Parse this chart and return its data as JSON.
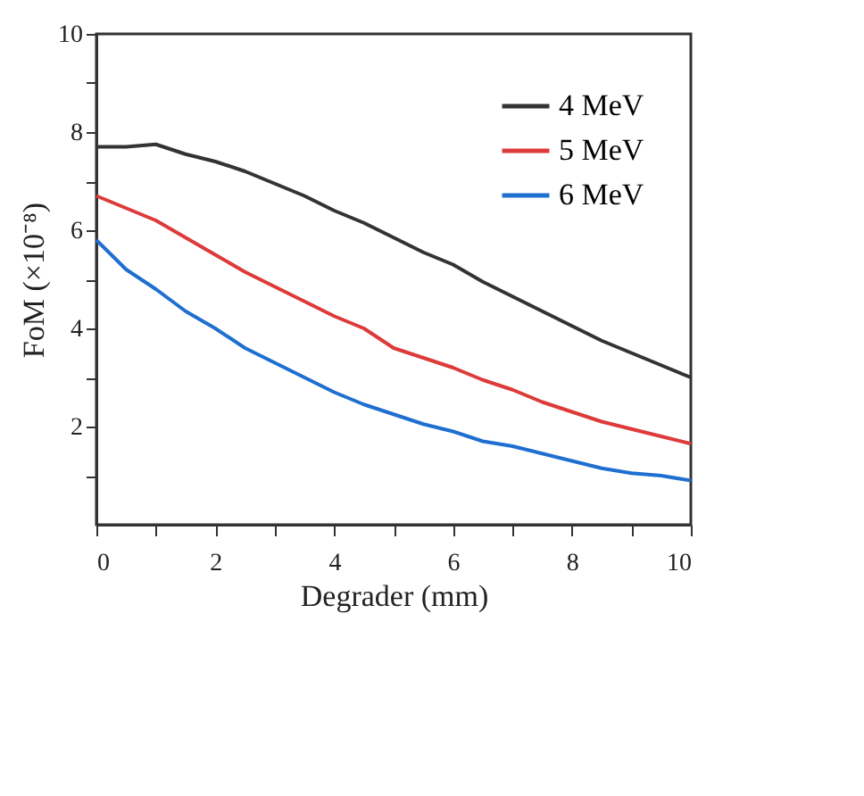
{
  "chart_data": {
    "type": "line",
    "xlabel": "Degrader (mm)",
    "ylabel": "FoM (×10⁻⁸)",
    "x": [
      0,
      0.5,
      1,
      1.5,
      2,
      2.5,
      3,
      3.5,
      4,
      4.5,
      5,
      5.5,
      6,
      6.5,
      7,
      7.5,
      8,
      8.5,
      9,
      9.5,
      10
    ],
    "series": [
      {
        "name": "4 MeV",
        "color": "#333333",
        "values": [
          7.7,
          7.7,
          7.75,
          7.55,
          7.4,
          7.2,
          6.95,
          6.7,
          6.4,
          6.15,
          5.85,
          5.55,
          5.3,
          4.95,
          4.65,
          4.35,
          4.05,
          3.75,
          3.5,
          3.25,
          3.0
        ]
      },
      {
        "name": "5 MeV",
        "color": "#dd3a3a",
        "values": [
          6.7,
          6.45,
          6.2,
          5.85,
          5.5,
          5.15,
          4.85,
          4.55,
          4.25,
          4.0,
          3.6,
          3.4,
          3.2,
          2.95,
          2.75,
          2.5,
          2.3,
          2.1,
          1.95,
          1.8,
          1.65
        ]
      },
      {
        "name": "6 MeV",
        "color": "#1f6fd0",
        "values": [
          5.8,
          5.2,
          4.8,
          4.35,
          4.0,
          3.6,
          3.3,
          3.0,
          2.7,
          2.45,
          2.25,
          2.05,
          1.9,
          1.7,
          1.6,
          1.45,
          1.3,
          1.15,
          1.05,
          1.0,
          0.9
        ]
      }
    ],
    "xlim": [
      0,
      10
    ],
    "xticks": [
      0,
      {
        "value": 1,
        "label": null
      },
      2,
      {
        "value": 3,
        "label": null
      },
      4,
      {
        "value": 5,
        "label": null
      },
      6,
      {
        "value": 7,
        "label": null
      },
      8,
      {
        "value": 9,
        "label": null
      },
      10
    ],
    "ylim": [
      0,
      10
    ],
    "yticks": [
      {
        "value": 1,
        "label": null
      },
      2,
      {
        "value": 3,
        "label": null
      },
      4,
      {
        "value": 5,
        "label": null
      },
      6,
      {
        "value": 7,
        "label": null
      },
      8,
      {
        "value": 9,
        "label": null
      },
      10
    ],
    "legend": "top right",
    "grid": false,
    "marker": "none",
    "line_style": "solid"
  }
}
